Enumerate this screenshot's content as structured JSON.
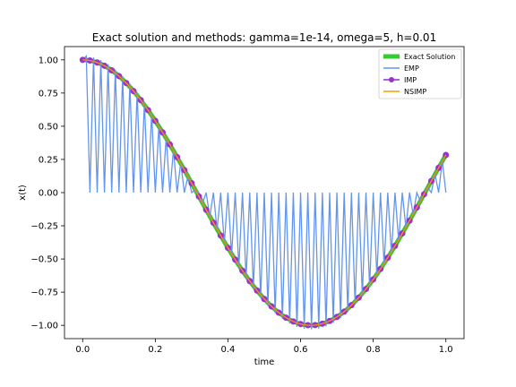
{
  "chart_data": {
    "type": "line",
    "title": "Exact solution and methods: gamma=1e-14, omega=5, h=0.01",
    "xlabel": "time",
    "ylabel": "x(t)",
    "xlim": [
      -0.05,
      1.05
    ],
    "ylim": [
      -1.1,
      1.1
    ],
    "x_ticks": [
      0.0,
      0.2,
      0.4,
      0.6,
      0.8,
      1.0
    ],
    "x_tick_labels": [
      "0.0",
      "0.2",
      "0.4",
      "0.6",
      "0.8",
      "1.0"
    ],
    "y_ticks": [
      -1.0,
      -0.75,
      -0.5,
      -0.25,
      0.0,
      0.25,
      0.5,
      0.75,
      1.0
    ],
    "y_tick_labels": [
      "−1.00",
      "−0.75",
      "−0.50",
      "−0.25",
      "0.00",
      "0.25",
      "0.50",
      "0.75",
      "1.00"
    ],
    "grid": false,
    "legend_position": "top-right",
    "x_range": [
      0,
      1
    ],
    "step": 0.01,
    "series": [
      {
        "name": "Exact Solution",
        "color": "#33cc33",
        "formula": "cos(5t)"
      },
      {
        "name": "EMP",
        "color": "#6495ed",
        "formula": "cos(5t) at odd steps, 0 at even steps (alternating)"
      },
      {
        "name": "IMP",
        "color": "#8a2be2",
        "formula": "cos(5t)",
        "marker": "circle",
        "marker_color": "#9a32cd",
        "marker_every": 2
      },
      {
        "name": "NSIMP",
        "color": "#ff9900",
        "formula": "cos(5t)"
      }
    ]
  }
}
